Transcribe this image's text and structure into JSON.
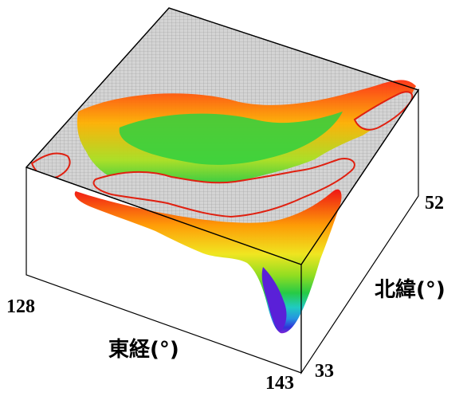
{
  "chart_data": {
    "type": "surface3d",
    "x_axis": {
      "label": "東経(°)",
      "min": 128,
      "max": 143,
      "tick_labels": [
        "128",
        "143"
      ]
    },
    "y_axis": {
      "label": "北緯(°)",
      "min": 33,
      "max": 52,
      "tick_labels": [
        "33",
        "52"
      ]
    },
    "z_axis": {
      "label": "",
      "description_values": []
    },
    "colormap": [
      "#7a1fd6",
      "#2a2ad8",
      "#1e8fe0",
      "#19c9c0",
      "#20c940",
      "#8ddc1a",
      "#f0e51a",
      "#ff9a00",
      "#f01010"
    ],
    "land_color": "#d2d2d2",
    "mesh_color": "#9a9a9a",
    "grid": true,
    "box": true
  }
}
